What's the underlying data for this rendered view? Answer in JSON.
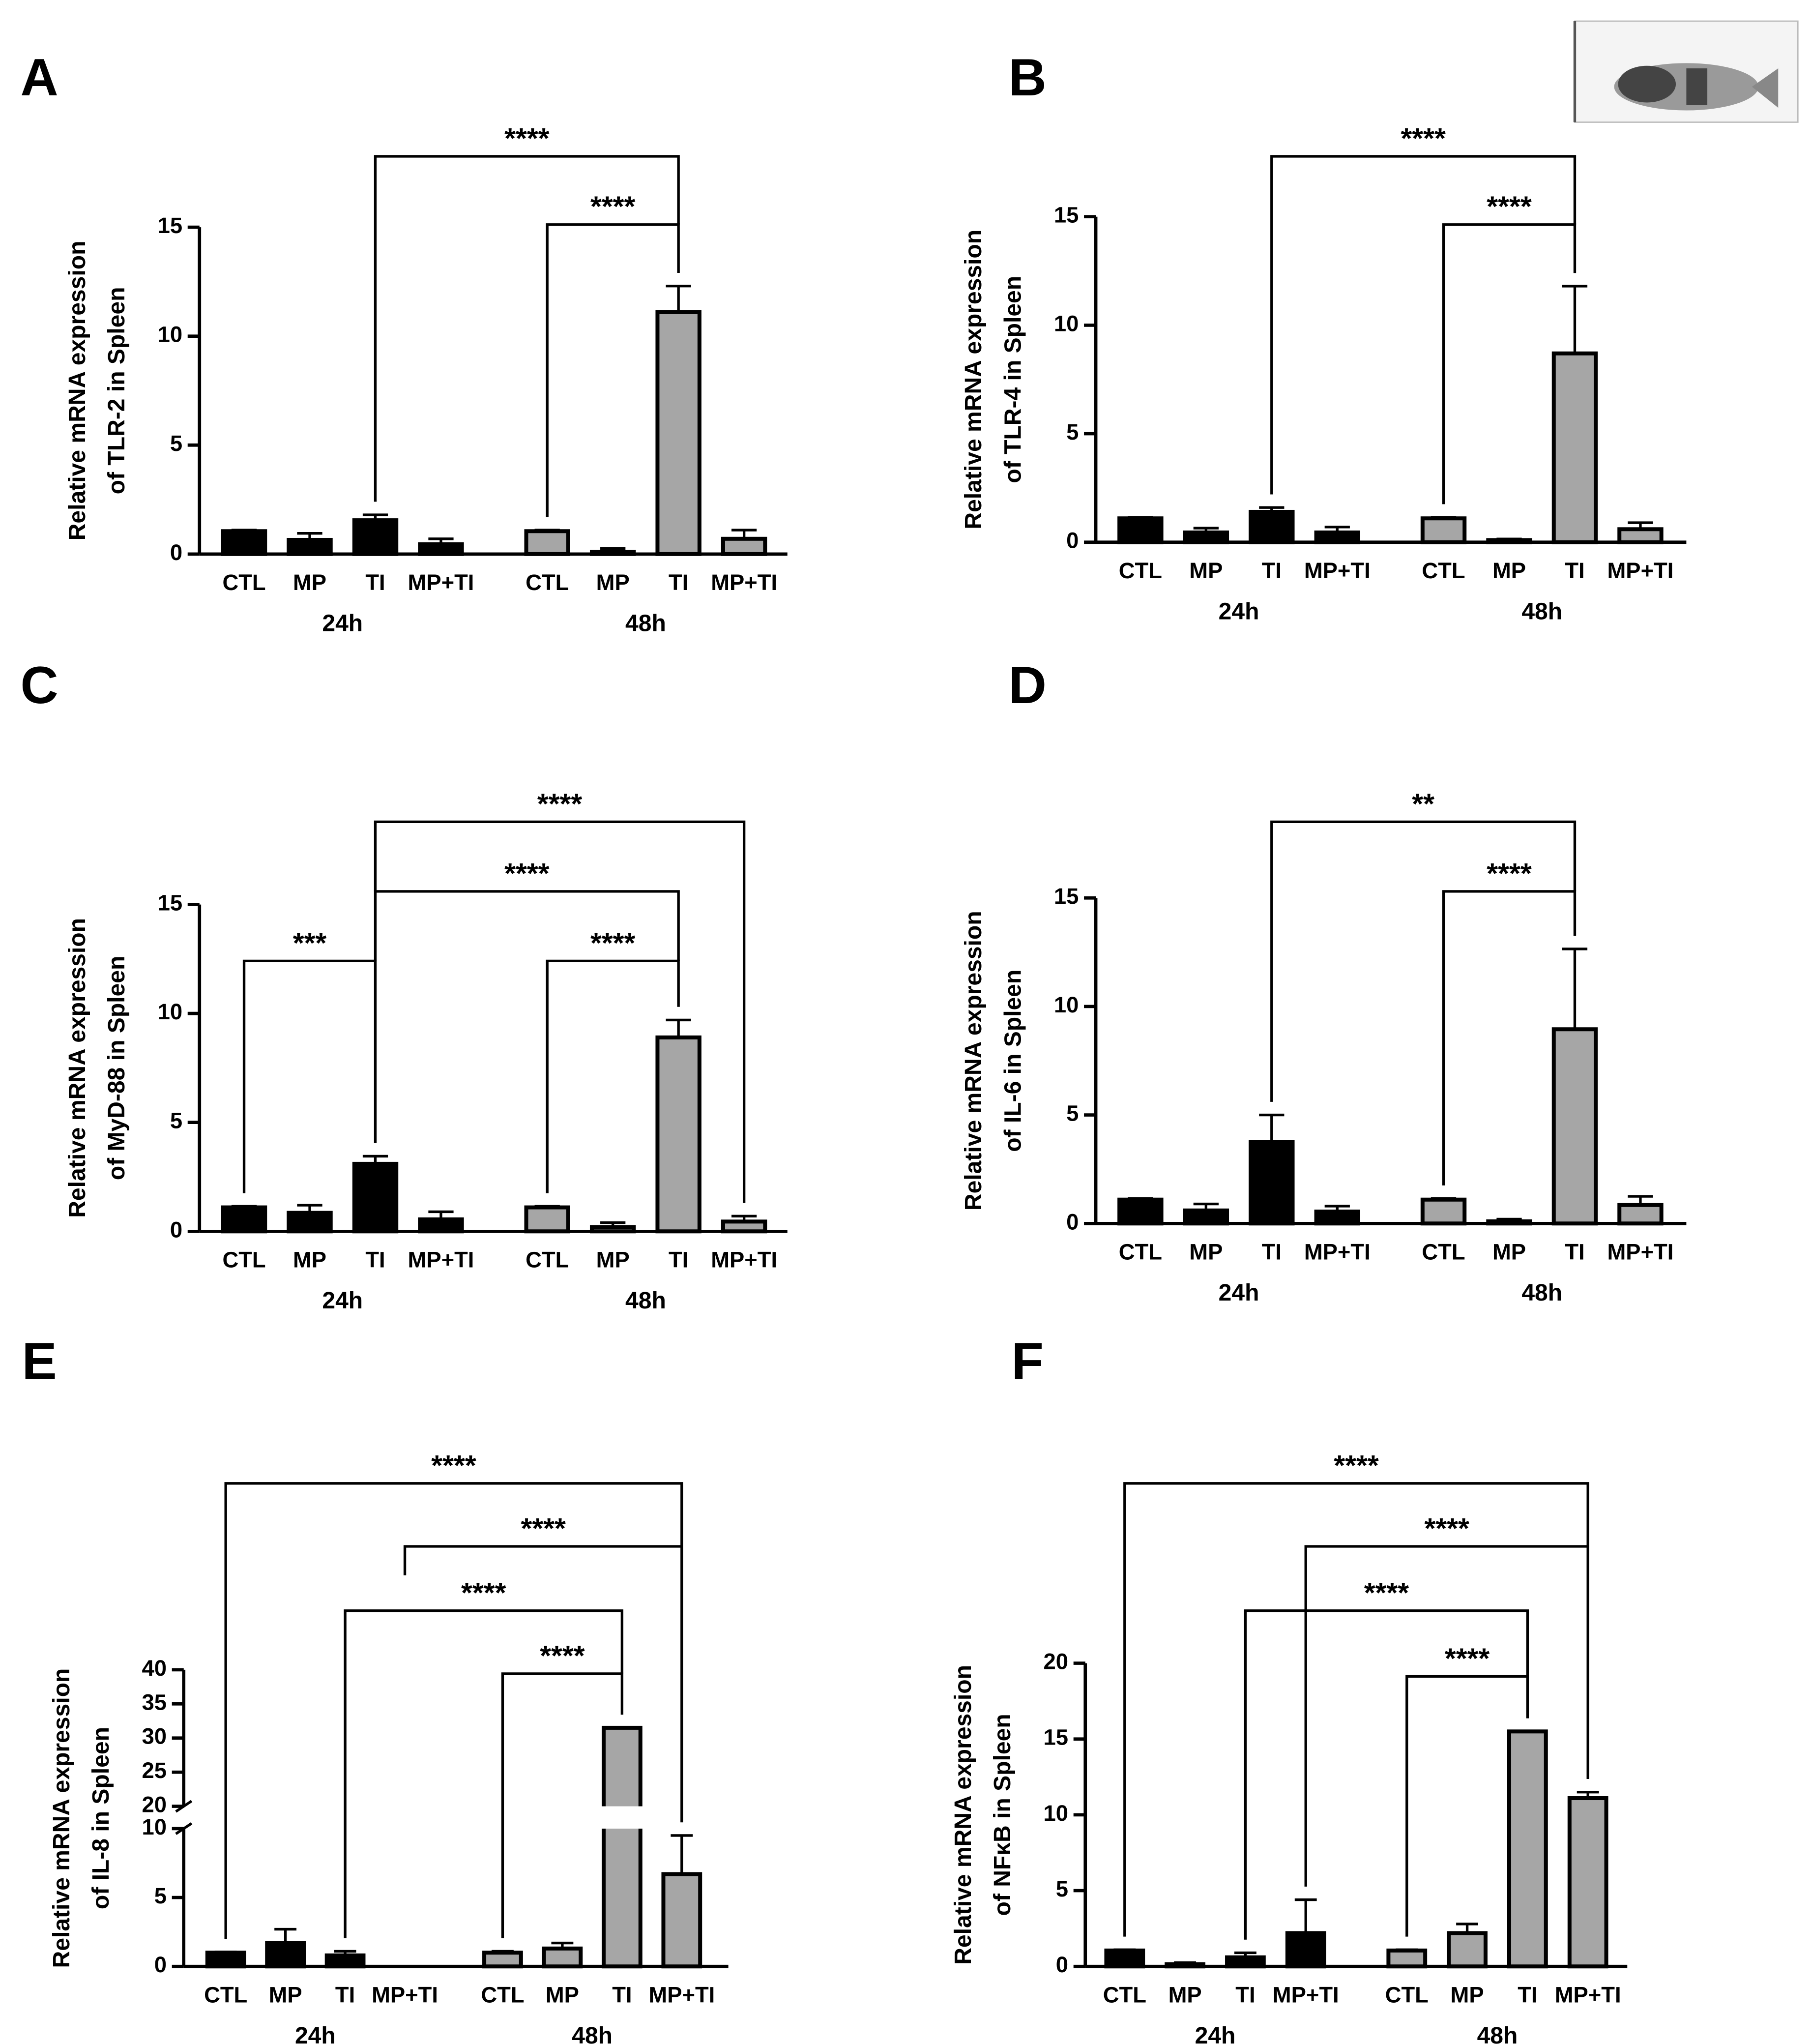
{
  "chart_data": [
    {
      "type": "bar",
      "panel": "A",
      "y_label": [
        "Relative mRNA expression",
        "of TLR-2 in Spleen"
      ],
      "categories": [
        "CTL",
        "MP",
        "TI",
        "MP+TI",
        "CTL",
        "MP",
        "TI",
        "MP+TI"
      ],
      "groups": [
        {
          "name": "24h",
          "color": "#000000"
        },
        {
          "name": "48h",
          "color": "#a6a6a6"
        }
      ],
      "values": [
        1.05,
        0.65,
        1.55,
        0.45,
        1.05,
        0.1,
        11.1,
        0.7
      ],
      "errors": [
        0.05,
        0.3,
        0.25,
        0.25,
        0.05,
        0.15,
        1.2,
        0.4
      ],
      "ylim": [
        0,
        15
      ],
      "yticks": [
        0,
        5,
        10,
        15
      ],
      "brackets": [
        {
          "from": 2,
          "to": 6,
          "label": "****"
        },
        {
          "from": 4,
          "to": 6,
          "label": "****"
        }
      ]
    },
    {
      "type": "bar",
      "panel": "B",
      "y_label": [
        "Relative mRNA expression",
        "of TLR-4 in Spleen"
      ],
      "categories": [
        "CTL",
        "MP",
        "TI",
        "MP+TI",
        "CTL",
        "MP",
        "TI",
        "MP+TI"
      ],
      "groups": [
        {
          "name": "24h",
          "color": "#000000"
        },
        {
          "name": "48h",
          "color": "#a6a6a6"
        }
      ],
      "values": [
        1.1,
        0.45,
        1.4,
        0.45,
        1.1,
        0.1,
        8.7,
        0.6
      ],
      "errors": [
        0.05,
        0.2,
        0.2,
        0.25,
        0.05,
        0.05,
        3.1,
        0.3
      ],
      "ylim": [
        0,
        15
      ],
      "yticks": [
        0,
        5,
        10,
        15
      ],
      "brackets": [
        {
          "from": 2,
          "to": 6,
          "label": "****"
        },
        {
          "from": 4,
          "to": 6,
          "label": "****"
        }
      ]
    },
    {
      "type": "bar",
      "panel": "C",
      "y_label": [
        "Relative mRNA expression",
        "of MyD-88 in Spleen"
      ],
      "categories": [
        "CTL",
        "MP",
        "TI",
        "MP+TI",
        "CTL",
        "MP",
        "TI",
        "MP+TI"
      ],
      "groups": [
        {
          "name": "24h",
          "color": "#000000"
        },
        {
          "name": "48h",
          "color": "#a6a6a6"
        }
      ],
      "values": [
        1.1,
        0.85,
        3.1,
        0.55,
        1.1,
        0.2,
        8.9,
        0.45
      ],
      "errors": [
        0.05,
        0.35,
        0.35,
        0.35,
        0.05,
        0.2,
        0.8,
        0.25
      ],
      "ylim": [
        0,
        15
      ],
      "yticks": [
        0,
        5,
        10,
        15
      ],
      "brackets": [
        {
          "from": 2,
          "to": 7,
          "label": "****"
        },
        {
          "from": 2,
          "to": 6,
          "label": "****"
        },
        {
          "from": 0,
          "to": 2,
          "label": "***"
        },
        {
          "from": 4,
          "to": 6,
          "label": "****"
        }
      ]
    },
    {
      "type": "bar",
      "panel": "D",
      "y_label": [
        "Relative mRNA expression",
        "of IL-6 in Spleen"
      ],
      "categories": [
        "CTL",
        "MP",
        "TI",
        "MP+TI",
        "CTL",
        "MP",
        "TI",
        "MP+TI"
      ],
      "groups": [
        {
          "name": "24h",
          "color": "#000000"
        },
        {
          "name": "48h",
          "color": "#a6a6a6"
        }
      ],
      "values": [
        1.1,
        0.6,
        3.75,
        0.55,
        1.1,
        0.1,
        8.95,
        0.85
      ],
      "errors": [
        0.05,
        0.3,
        1.25,
        0.25,
        0.05,
        0.1,
        3.7,
        0.4
      ],
      "ylim": [
        0,
        15
      ],
      "yticks": [
        0,
        5,
        10,
        15
      ],
      "brackets": [
        {
          "from": 2,
          "to": 6,
          "label": "**"
        },
        {
          "from": 4,
          "to": 6,
          "label": "****"
        }
      ]
    },
    {
      "type": "bar",
      "panel": "E",
      "y_label": [
        "Relative mRNA expression",
        "of IL-8 in Spleen"
      ],
      "categories": [
        "CTL",
        "MP",
        "TI",
        "MP+TI",
        "CTL",
        "MP",
        "TI",
        "MP+TI"
      ],
      "groups": [
        {
          "name": "24h",
          "color": "#000000"
        },
        {
          "name": "48h",
          "color": "#a6a6a6"
        }
      ],
      "values": [
        1.0,
        1.7,
        0.8,
        null,
        1.0,
        1.3,
        31.5,
        6.7
      ],
      "errors": [
        0.05,
        1.0,
        0.3,
        null,
        0.1,
        0.4,
        0,
        2.8
      ],
      "ylim": [
        0,
        40
      ],
      "yticks": [
        0,
        5,
        10,
        20,
        25,
        30,
        35,
        40
      ],
      "axis_break": [
        10,
        20
      ],
      "brackets": [
        {
          "from": 0,
          "to": 7,
          "label": "****"
        },
        {
          "from": 3,
          "to": 7,
          "label": "****"
        },
        {
          "from": 2,
          "to": 6,
          "label": "****"
        },
        {
          "from": 4,
          "to": 6,
          "label": "****"
        }
      ]
    },
    {
      "type": "bar",
      "panel": "F",
      "y_label": [
        "Relative mRNA expression",
        "of NFκB in Spleen"
      ],
      "categories": [
        "CTL",
        "MP",
        "TI",
        "MP+TI",
        "CTL",
        "MP",
        "TI",
        "MP+TI"
      ],
      "groups": [
        {
          "name": "24h",
          "color": "#000000"
        },
        {
          "name": "48h",
          "color": "#a6a6a6"
        }
      ],
      "values": [
        1.05,
        0.15,
        0.6,
        2.2,
        1.05,
        2.2,
        15.5,
        11.1
      ],
      "errors": [
        0.05,
        0.1,
        0.3,
        2.2,
        0.05,
        0.6,
        0,
        0.4
      ],
      "ylim": [
        0,
        20
      ],
      "yticks": [
        0,
        5,
        10,
        15,
        20
      ],
      "brackets": [
        {
          "from": 0,
          "to": 7,
          "label": "****"
        },
        {
          "from": 3,
          "to": 7,
          "label": "****"
        },
        {
          "from": 2,
          "to": 6,
          "label": "****"
        },
        {
          "from": 4,
          "to": 6,
          "label": "****"
        }
      ]
    }
  ]
}
